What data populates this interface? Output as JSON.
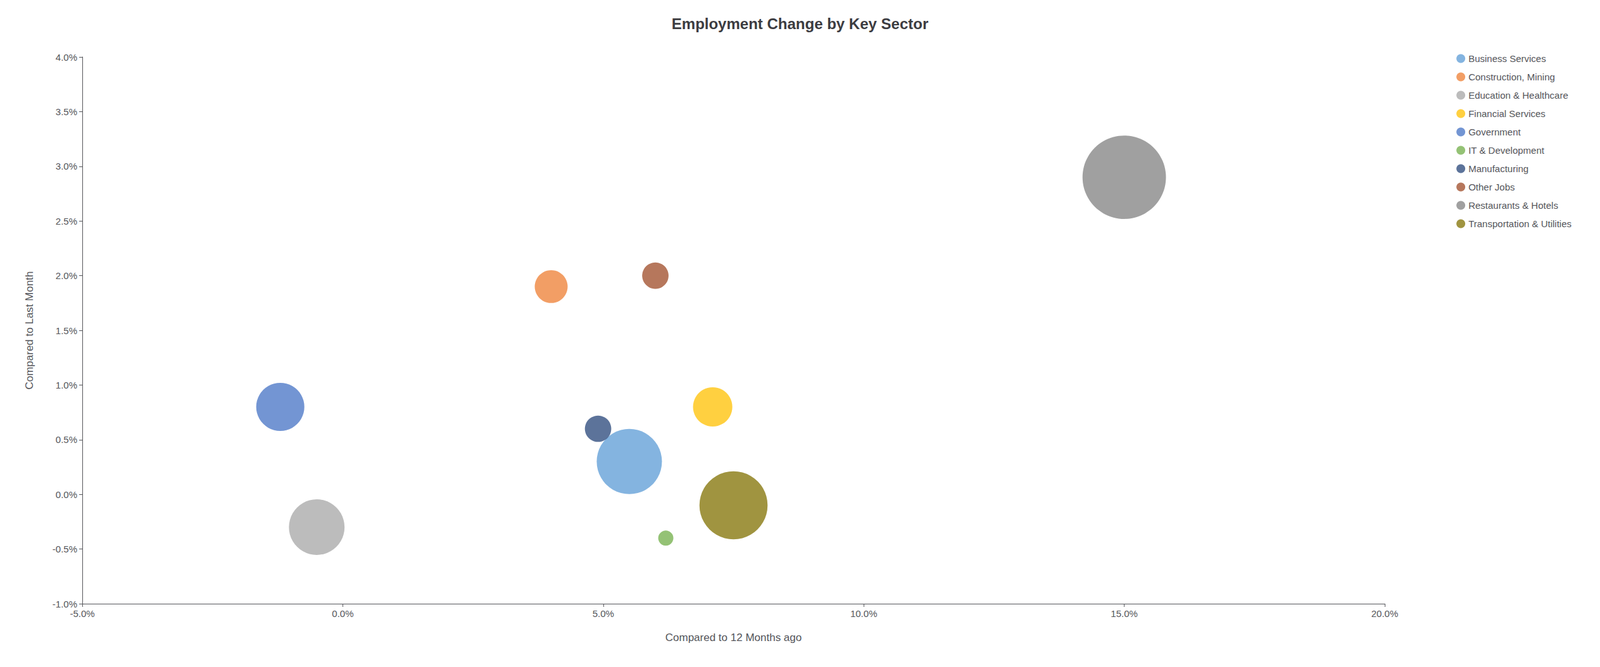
{
  "chart_data": {
    "type": "scatter",
    "title": "Employment Change by Key Sector",
    "xlabel": "Compared to 12 Months ago",
    "ylabel": "Compared to Last Month",
    "xlim": [
      -0.05,
      0.2
    ],
    "ylim": [
      -0.01,
      0.04
    ],
    "xticks": [
      {
        "value": -0.05,
        "label": "-5.0%"
      },
      {
        "value": 0.0,
        "label": "0.0%"
      },
      {
        "value": 0.05,
        "label": "5.0%"
      },
      {
        "value": 0.1,
        "label": "10.0%"
      },
      {
        "value": 0.15,
        "label": "15.0%"
      },
      {
        "value": 0.2,
        "label": "20.0%"
      }
    ],
    "yticks": [
      {
        "value": -0.01,
        "label": "-1.0%"
      },
      {
        "value": -0.005,
        "label": "-0.5%"
      },
      {
        "value": 0.0,
        "label": "0.0%"
      },
      {
        "value": 0.005,
        "label": "0.5%"
      },
      {
        "value": 0.01,
        "label": "1.0%"
      },
      {
        "value": 0.015,
        "label": "1.5%"
      },
      {
        "value": 0.02,
        "label": "2.0%"
      },
      {
        "value": 0.025,
        "label": "2.5%"
      },
      {
        "value": 0.03,
        "label": "3.0%"
      },
      {
        "value": 0.035,
        "label": "3.5%"
      },
      {
        "value": 0.04,
        "label": "4.0%"
      }
    ],
    "grid": false,
    "legend": "right",
    "marker": "circle",
    "series": [
      {
        "name": "Business Services",
        "color": "#5b9bd5",
        "x": [
          0.055
        ],
        "values": [
          0.003
        ],
        "sizes": [
          5500
        ]
      },
      {
        "name": "Construction, Mining",
        "color": "#ed7d31",
        "x": [
          0.04
        ],
        "values": [
          0.019
        ],
        "sizes": [
          1400
        ]
      },
      {
        "name": "Education & Healthcare",
        "color": "#a5a5a5",
        "x": [
          -0.005
        ],
        "values": [
          -0.003
        ],
        "sizes": [
          4000
        ]
      },
      {
        "name": "Financial Services",
        "color": "#ffc000",
        "x": [
          0.071
        ],
        "values": [
          0.008
        ],
        "sizes": [
          2000
        ]
      },
      {
        "name": "Government",
        "color": "#4472c4",
        "x": [
          -0.012
        ],
        "values": [
          0.008
        ],
        "sizes": [
          3000
        ]
      },
      {
        "name": "IT & Development",
        "color": "#70ad47",
        "x": [
          0.062
        ],
        "values": [
          -0.004
        ],
        "sizes": [
          300
        ]
      },
      {
        "name": "Manufacturing",
        "color": "#264478",
        "x": [
          0.049
        ],
        "values": [
          0.006
        ],
        "sizes": [
          900
        ]
      },
      {
        "name": "Other Jobs",
        "color": "#9e4a26",
        "x": [
          0.06
        ],
        "values": [
          0.02
        ],
        "sizes": [
          900
        ]
      },
      {
        "name": "Restaurants & Hotels",
        "color": "#808080",
        "x": [
          0.15
        ],
        "values": [
          0.029
        ],
        "sizes": [
          9000
        ]
      },
      {
        "name": "Transportation & Utilities",
        "color": "#807000",
        "x": [
          0.075
        ],
        "values": [
          -0.001
        ],
        "sizes": [
          6000
        ]
      }
    ]
  }
}
